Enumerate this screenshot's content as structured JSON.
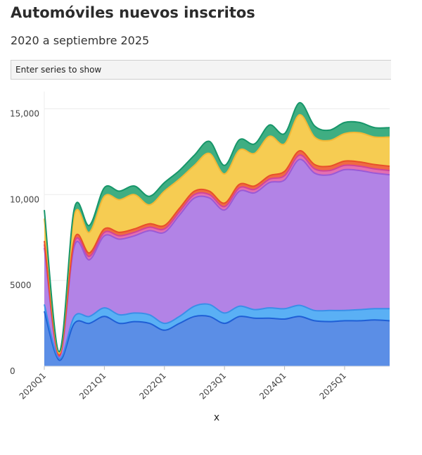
{
  "title": "Automóviles nuevos inscritos",
  "subtitle": "2020 a septiembre 2025",
  "search": {
    "placeholder": "Enter series to show"
  },
  "chart_data": {
    "type": "area",
    "stacked": true,
    "title": "Automóviles nuevos inscritos",
    "subtitle": "2020 a septiembre 2025",
    "xlabel": "x",
    "ylabel": "",
    "ylim": [
      0,
      16000
    ],
    "yticks": [
      0,
      5000,
      10000,
      15000
    ],
    "ytick_labels": [
      "0",
      "5000",
      "10,000",
      "15,000"
    ],
    "xtick_labels": [
      "2020Q1",
      "2021Q1",
      "2022Q1",
      "2023Q1",
      "2024Q1",
      "2025Q1"
    ],
    "grid": "horizontal",
    "legend": "none",
    "x": [
      "2020-01",
      "2020-04",
      "2020-07",
      "2020-10",
      "2021-01",
      "2021-04",
      "2021-07",
      "2021-10",
      "2022-01",
      "2022-04",
      "2022-07",
      "2022-10",
      "2023-01",
      "2023-04",
      "2023-07",
      "2023-10",
      "2024-01",
      "2024-04",
      "2024-07",
      "2024-10",
      "2025-01",
      "2025-04",
      "2025-07",
      "2025-09"
    ],
    "series": [
      {
        "color": "#5b8ee6",
        "values": [
          3200,
          350,
          2500,
          2500,
          2900,
          2500,
          2600,
          2500,
          2100,
          2500,
          2900,
          2900,
          2500,
          2900,
          2800,
          2800,
          2750,
          2900,
          2650,
          2600,
          2650,
          2650,
          2700,
          2650
        ]
      },
      {
        "color": "#5ab0f5",
        "values": [
          400,
          100,
          400,
          400,
          500,
          500,
          500,
          500,
          400,
          400,
          600,
          700,
          600,
          600,
          500,
          600,
          600,
          650,
          600,
          650,
          600,
          650,
          650,
          700
        ]
      },
      {
        "color": "#b283e6",
        "values": [
          3300,
          100,
          4100,
          3300,
          4200,
          4400,
          4500,
          4900,
          5300,
          5900,
          6300,
          6200,
          6000,
          6700,
          6800,
          7300,
          7500,
          8500,
          8000,
          7900,
          8200,
          8100,
          7900,
          7800
        ]
      },
      {
        "color": "#e36fb1",
        "values": [
          200,
          50,
          200,
          200,
          200,
          200,
          200,
          200,
          200,
          200,
          200,
          200,
          200,
          200,
          200,
          200,
          250,
          250,
          250,
          250,
          250,
          250,
          250,
          250
        ]
      },
      {
        "color": "#f06a42",
        "values": [
          200,
          50,
          200,
          200,
          200,
          200,
          200,
          200,
          200,
          200,
          200,
          200,
          200,
          200,
          200,
          200,
          250,
          250,
          250,
          250,
          250,
          250,
          250,
          250
        ]
      },
      {
        "color": "#f6cc52",
        "values": [
          1300,
          100,
          1400,
          1200,
          1900,
          1900,
          2000,
          1100,
          2000,
          1700,
          1500,
          2200,
          1700,
          2000,
          1900,
          2300,
          1600,
          2100,
          1600,
          1500,
          1600,
          1700,
          1600,
          1700
        ]
      },
      {
        "color": "#3fae82",
        "values": [
          500,
          100,
          400,
          400,
          500,
          500,
          500,
          500,
          500,
          500,
          600,
          700,
          500,
          600,
          550,
          650,
          600,
          700,
          650,
          600,
          650,
          600,
          550,
          550
        ]
      }
    ],
    "line_colors": [
      "#1f5fd6",
      "#3a8fe8",
      "#9a5ad6",
      "#d0449a",
      "#e8502a",
      "#f2b836",
      "#17966a"
    ]
  }
}
